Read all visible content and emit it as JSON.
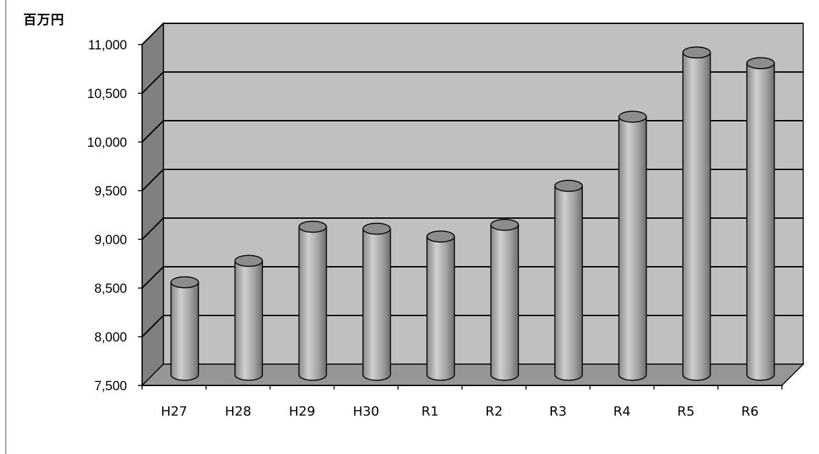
{
  "chart_data": {
    "type": "bar",
    "style": "3d-cylinder",
    "title": "",
    "xlabel": "",
    "ylabel": "",
    "unit_label": "百万円",
    "categories": [
      "H27",
      "H28",
      "H29",
      "H30",
      "R1",
      "R2",
      "R3",
      "R4",
      "R5",
      "R6"
    ],
    "values": [
      8450,
      8670,
      9020,
      9000,
      8920,
      9040,
      9440,
      10150,
      10810,
      10700
    ],
    "ylim": [
      7500,
      11000
    ],
    "yticks": [
      7500,
      8000,
      8500,
      9000,
      9500,
      10000,
      10500,
      11000
    ],
    "ytick_labels": [
      "7,500",
      "8,000",
      "8,500",
      "9,000",
      "9,500",
      "10,000",
      "10,500",
      "11,000"
    ],
    "grid": true,
    "legend": "none",
    "colors": {
      "back_wall": "#c0c0c0",
      "side_wall": "#808080",
      "floor": "#969696",
      "bar_light": "#cfcfcf",
      "bar_mid": "#a3a3a3",
      "bar_dark": "#6e6e6e",
      "grid": "#000000"
    }
  }
}
